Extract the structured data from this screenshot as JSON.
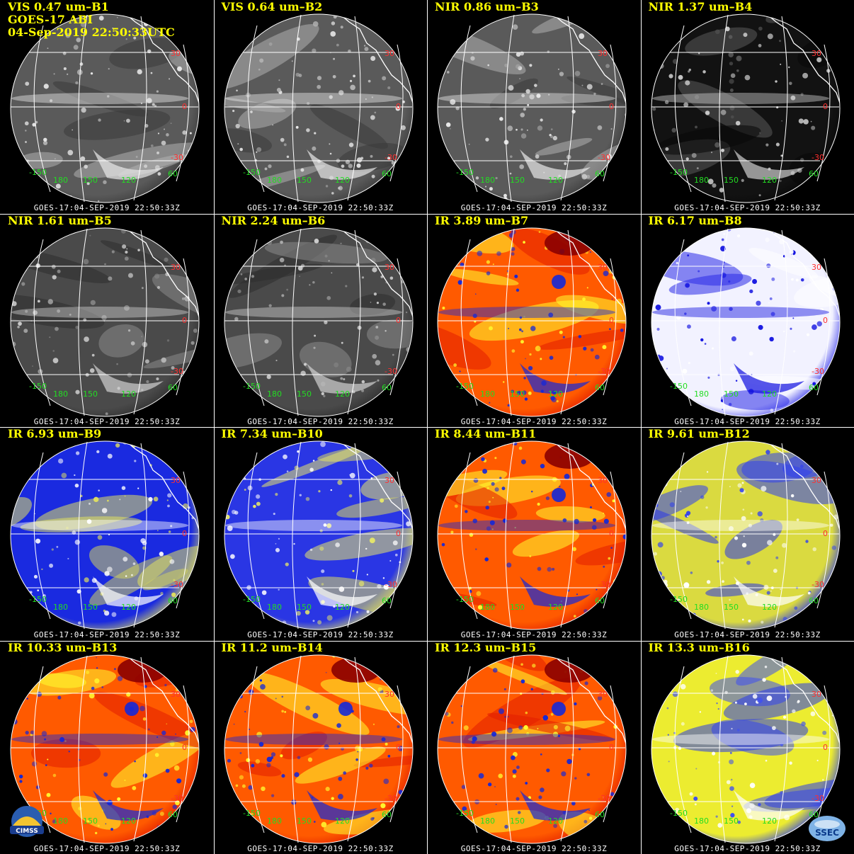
{
  "header": {
    "satellite": "GOES-17 ABI",
    "datetime": "04-Sep-2019 22:50:33UTC"
  },
  "stamp": "GOES-17:04-SEP-2019  22:50:33Z",
  "logos": {
    "left": "CIMSS",
    "right": "SSEC"
  },
  "grid_labels": {
    "lat": [
      "30",
      "0",
      "-30",
      "30"
    ],
    "lon": [
      "-150",
      "180",
      "150",
      "120",
      "60"
    ]
  },
  "colors": {
    "title": "#ffff00",
    "lat_label": "#ff3030",
    "lon_label": "#22dd22",
    "grid": "#ffffff"
  },
  "panels": [
    {
      "title": "VIS 0.47 um–B1",
      "style": "vis"
    },
    {
      "title": "VIS 0.64 um–B2",
      "style": "vis"
    },
    {
      "title": "NIR 0.86 um–B3",
      "style": "vis"
    },
    {
      "title": "NIR 1.37 um–B4",
      "style": "dark"
    },
    {
      "title": "NIR 1.61 um–B5",
      "style": "vis2"
    },
    {
      "title": "NIR 2.24 um–B6",
      "style": "vis2"
    },
    {
      "title": "IR 3.89 um–B7",
      "style": "ir"
    },
    {
      "title": "IR 6.17 um–B8",
      "style": "wv_white"
    },
    {
      "title": "IR 6.93 um–B9",
      "style": "wv_blue"
    },
    {
      "title": "IR 7.34 um–B10",
      "style": "wv_yellow"
    },
    {
      "title": "IR 8.44 um–B11",
      "style": "ir"
    },
    {
      "title": "IR 9.61 um–B12",
      "style": "oz"
    },
    {
      "title": "IR 10.33 um–B13",
      "style": "ir"
    },
    {
      "title": "IR 11.2 um–B14",
      "style": "ir"
    },
    {
      "title": "IR 12.3 um–B15",
      "style": "ir"
    },
    {
      "title": "IR 13.3 um–B16",
      "style": "co2"
    }
  ]
}
